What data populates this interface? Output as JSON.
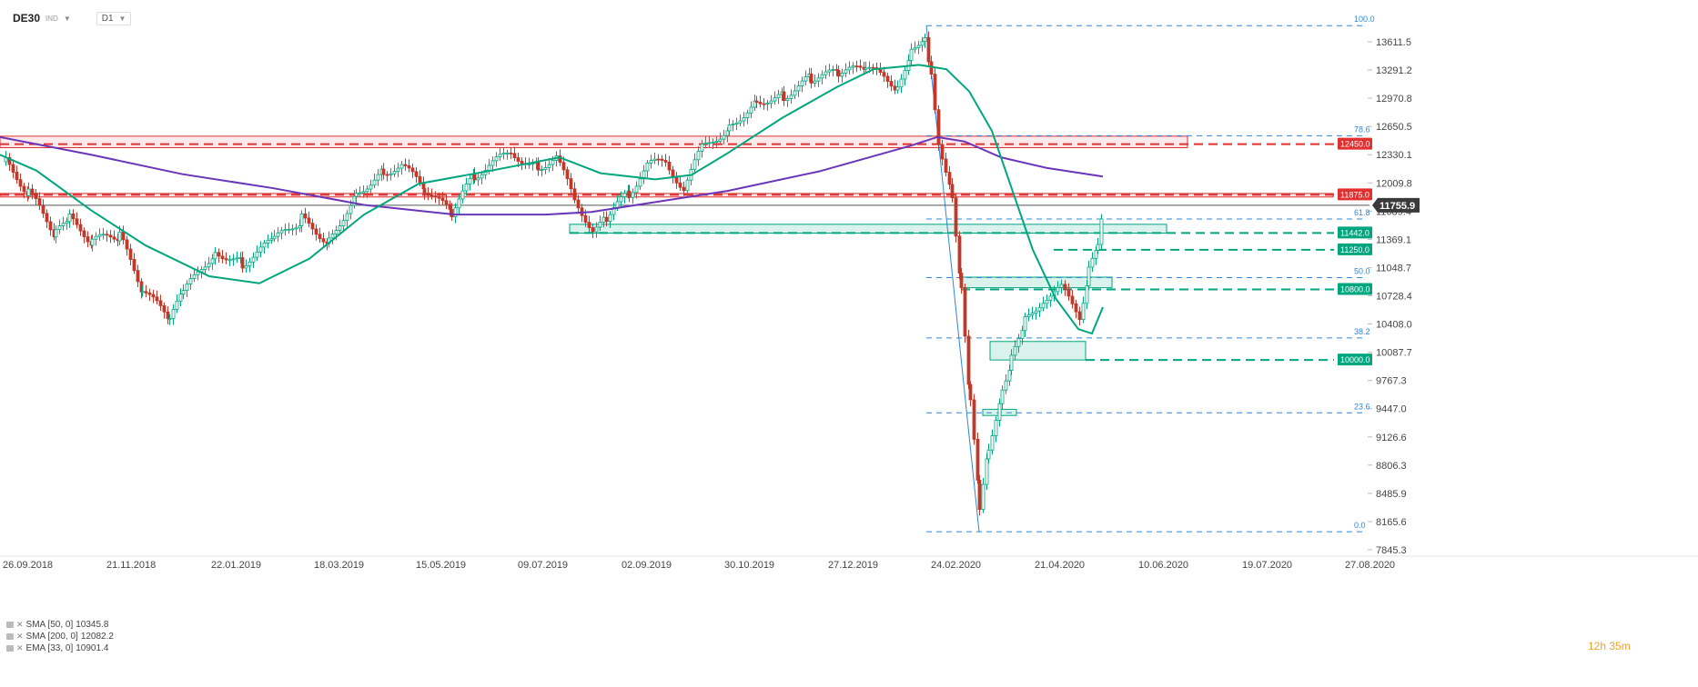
{
  "header": {
    "symbol": "DE30",
    "market": "IND",
    "interval": "D1"
  },
  "indicators": [
    {
      "label": "SMA [50, 0]",
      "value": "10345.8",
      "color": "#00a67e"
    },
    {
      "label": "SMA [200, 0]",
      "value": "12082.2",
      "color": "#6a35b8"
    },
    {
      "label": "EMA [33, 0]",
      "value": "10901.4",
      "color": "#00a67e"
    }
  ],
  "timer": "12h 35m",
  "colors": {
    "bull": "#00a67e",
    "bear": "#c0392b",
    "resistance": "#e03030",
    "support": "#00a67e",
    "fib": "#2e86de",
    "sma200": "#6a35b8"
  },
  "chart_data": {
    "type": "candlestick",
    "title": "",
    "xlabel": "",
    "ylabel": "",
    "ylim": [
      7700,
      13900
    ],
    "x_ticks": [
      "26.09.2018",
      "21.11.2018",
      "22.01.2019",
      "18.03.2019",
      "15.05.2019",
      "09.07.2019",
      "02.09.2019",
      "30.10.2019",
      "27.12.2019",
      "24.02.2020",
      "21.04.2020",
      "10.06.2020",
      "19.07.2020",
      "27.08.2020"
    ],
    "y_ticks": [
      "13611.5",
      "13291.2",
      "12970.8",
      "12650.5",
      "12330.1",
      "12009.8",
      "11689.4",
      "11369.1",
      "11048.7",
      "10728.4",
      "10408.0",
      "10087.7",
      "9767.3",
      "9447.0",
      "9126.6",
      "8806.3",
      "8485.9",
      "8165.6",
      "7845.3"
    ],
    "last_price": "11755.9",
    "price_levels": [
      {
        "label": "12450.0",
        "value": 12450,
        "kind": "resistance"
      },
      {
        "label": "11875.0",
        "value": 11875,
        "kind": "resistance"
      },
      {
        "label": "11442.0",
        "value": 11442,
        "kind": "support"
      },
      {
        "label": "11250.0",
        "value": 11250,
        "kind": "support"
      },
      {
        "label": "10800.0",
        "value": 10800,
        "kind": "support"
      },
      {
        "label": "10000.0",
        "value": 10000,
        "kind": "support"
      }
    ],
    "fibonacci": [
      {
        "label": "100.0",
        "value": 13795
      },
      {
        "label": "78.6",
        "value": 12545
      },
      {
        "label": "61.8",
        "value": 11600
      },
      {
        "label": "50.0",
        "value": 10935
      },
      {
        "label": "38.2",
        "value": 10250
      },
      {
        "label": "23.6",
        "value": 9400
      },
      {
        "label": "0.0",
        "value": 8050
      }
    ],
    "series": [
      {
        "name": "SMA [50, 0]",
        "value": 10345.8
      },
      {
        "name": "SMA [200, 0]",
        "value": 12082.2
      },
      {
        "name": "EMA [33, 0]",
        "value": 10901.4
      }
    ],
    "grid": false,
    "legend": "bottom-left"
  }
}
